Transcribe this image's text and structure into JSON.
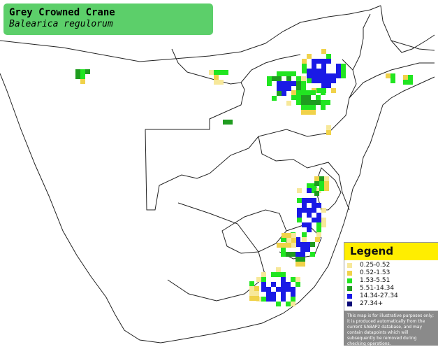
{
  "title": {
    "common_name": "Grey Crowned Crane",
    "scientific_name": "Balearica regulorum"
  },
  "colors": {
    "title_box": "#5ccf6a",
    "legend_header": "#ffee00",
    "disclaimer_bg": "#8a8a8a",
    "outline": "#222222"
  },
  "legend": {
    "title": "Legend",
    "items": [
      {
        "label": "0.25-0.52",
        "color": "#f7e89a"
      },
      {
        "label": "0.52-1.53",
        "color": "#f0d24a"
      },
      {
        "label": "1.53-5.51",
        "color": "#21e521"
      },
      {
        "label": "5.51-14.34",
        "color": "#1f9c1f"
      },
      {
        "label": "14.34-27.34",
        "color": "#1a1ae6"
      },
      {
        "label": "27.34+",
        "color": "#0a0a78"
      }
    ],
    "disclaimer": "This map is for illustrative purposes only; it is produced automatically from the current SABAP2 database, and may contain datapoints which will subsequently be removed during checking operations."
  }
}
